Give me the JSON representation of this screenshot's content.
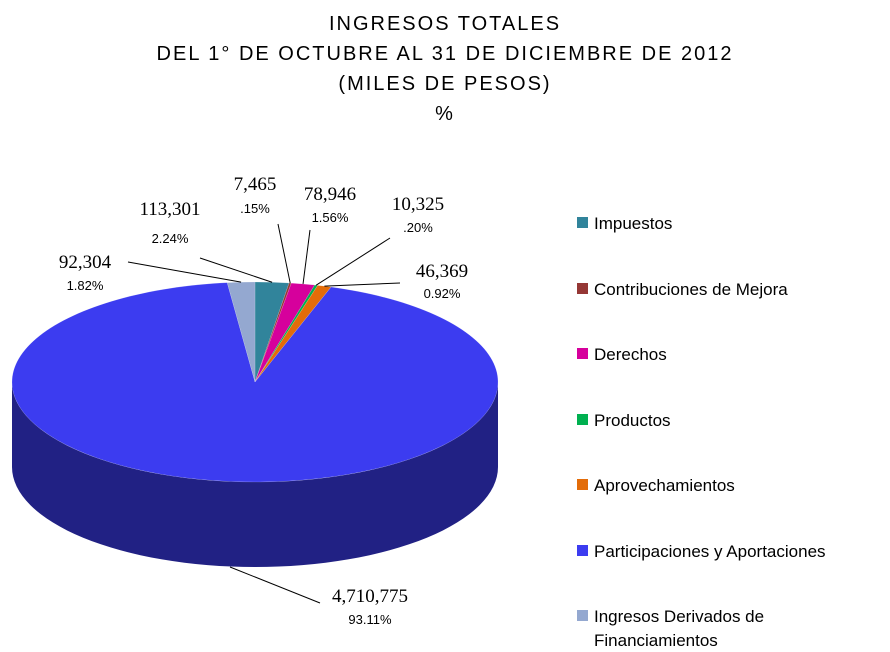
{
  "chart_data": {
    "type": "pie3d",
    "title": "INGRESOS TOTALES",
    "subtitle": [
      "DEL 1° DE OCTUBRE AL 31 DE DICIEMBRE DE 2012",
      "(MILES DE PESOS)",
      "%"
    ],
    "categories": [
      "Impuestos",
      "Contribuciones de Mejora",
      "Derechos",
      "Productos",
      "Aprovechamientos",
      "Participaciones y Aportaciones",
      "Ingresos Derivados de Financiamientos"
    ],
    "values": [
      113301,
      7465,
      78946,
      10325,
      46369,
      4710775,
      92304
    ],
    "value_labels": [
      "113,301",
      "7,465",
      "78,946",
      "10,325",
      "46,369",
      "4,710,775",
      "92,304"
    ],
    "percents": [
      2.24,
      0.15,
      1.56,
      0.2,
      0.92,
      93.11,
      1.82
    ],
    "percent_labels": [
      "2.24%",
      ".15%",
      "1.56%",
      ".20%",
      "0.92%",
      "93.11%",
      "1.82%"
    ],
    "colors": [
      "#31849b",
      "#953735",
      "#d6009c",
      "#00b050",
      "#e36c09",
      "#3c3cf0",
      "#94a8d0"
    ],
    "legend": "right"
  }
}
